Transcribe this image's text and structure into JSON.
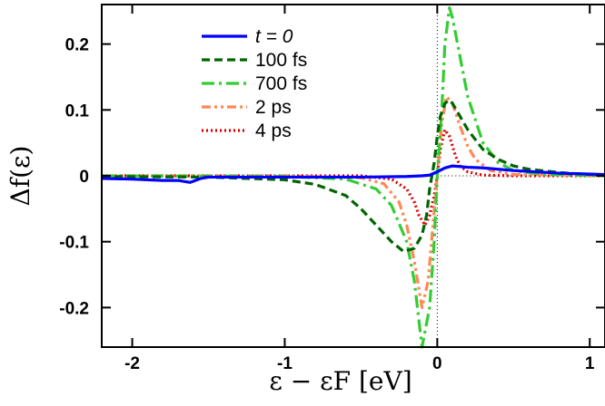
{
  "chart_data": {
    "type": "line",
    "xlabel": "ε − εF [eV]",
    "ylabel": "Δf(ε)",
    "xlim": [
      -2.2,
      1.1
    ],
    "ylim": [
      -0.26,
      0.26
    ],
    "xticks": [
      -2,
      -1,
      0,
      1
    ],
    "xtick_labels": [
      "-2",
      "-1",
      "0",
      "1"
    ],
    "yticks": [
      -0.2,
      -0.1,
      0,
      0.1,
      0.2
    ],
    "ytick_labels": [
      "-0.2",
      "-0.1",
      "0",
      "0.1",
      "0.2"
    ],
    "grid": false,
    "legend_position": "top-center",
    "reference_lines": {
      "zero_line": "dotted",
      "fermi_level": "dotted"
    },
    "series": [
      {
        "name": "t = 0",
        "color": "#0000ff",
        "dash": "solid",
        "x": [
          -2.2,
          -2.0,
          -1.8,
          -1.7,
          -1.62,
          -1.55,
          -1.5,
          -1.3,
          -1.0,
          -0.5,
          -0.2,
          -0.1,
          -0.05,
          0.0,
          0.05,
          0.1,
          0.2,
          0.3,
          0.5,
          0.8,
          1.1
        ],
        "values": [
          -0.004,
          -0.005,
          -0.007,
          -0.007,
          -0.01,
          -0.004,
          -0.002,
          -0.002,
          -0.002,
          -0.002,
          -0.001,
          0.0,
          0.001,
          0.006,
          0.012,
          0.015,
          0.013,
          0.012,
          0.008,
          0.004,
          0.002
        ]
      },
      {
        "name": "100 fs",
        "color": "#006400",
        "dash": "dashed",
        "x": [
          -2.2,
          -1.5,
          -1.0,
          -0.8,
          -0.6,
          -0.5,
          -0.4,
          -0.3,
          -0.22,
          -0.15,
          -0.1,
          -0.07,
          -0.05,
          -0.02,
          0.0,
          0.02,
          0.05,
          0.08,
          0.1,
          0.15,
          0.2,
          0.3,
          0.4,
          0.5,
          0.6,
          0.8,
          1.0,
          1.1
        ],
        "values": [
          -0.001,
          -0.002,
          -0.006,
          -0.013,
          -0.03,
          -0.05,
          -0.075,
          -0.1,
          -0.115,
          -0.11,
          -0.09,
          -0.06,
          -0.02,
          0.02,
          0.06,
          0.09,
          0.11,
          0.115,
          0.11,
          0.09,
          0.07,
          0.04,
          0.025,
          0.015,
          0.01,
          0.005,
          0.002,
          0.001
        ]
      },
      {
        "name": "700 fs",
        "color": "#33cc33",
        "dash": "dash-dot",
        "x": [
          -2.2,
          -1.0,
          -0.6,
          -0.4,
          -0.3,
          -0.2,
          -0.15,
          -0.1,
          -0.05,
          -0.02,
          0.0,
          0.03,
          0.05,
          0.08,
          0.1,
          0.15,
          0.2,
          0.3,
          0.4,
          0.5,
          0.7,
          1.1
        ],
        "values": [
          0.0,
          -0.001,
          -0.005,
          -0.02,
          -0.045,
          -0.1,
          -0.16,
          -0.26,
          -0.2,
          -0.1,
          0.0,
          0.1,
          0.2,
          0.255,
          0.24,
          0.18,
          0.12,
          0.05,
          0.02,
          0.008,
          0.002,
          0.0
        ]
      },
      {
        "name": "2 ps",
        "color": "#ff8855",
        "dash": "dash-dot-dot",
        "x": [
          -2.2,
          -1.0,
          -0.5,
          -0.35,
          -0.25,
          -0.2,
          -0.15,
          -0.1,
          -0.06,
          -0.03,
          0.0,
          0.03,
          0.06,
          0.1,
          0.15,
          0.2,
          0.25,
          0.35,
          0.5,
          1.1
        ],
        "values": [
          0.0,
          0.0,
          -0.003,
          -0.012,
          -0.04,
          -0.075,
          -0.13,
          -0.2,
          -0.16,
          -0.08,
          0.0,
          0.08,
          0.12,
          0.11,
          0.075,
          0.045,
          0.025,
          0.008,
          0.002,
          0.0
        ]
      },
      {
        "name": "4 ps",
        "color": "#dd0000",
        "dash": "dotted",
        "x": [
          -2.2,
          -0.5,
          -0.3,
          -0.2,
          -0.15,
          -0.12,
          -0.08,
          -0.05,
          -0.02,
          0.0,
          0.02,
          0.05,
          0.08,
          0.12,
          0.15,
          0.2,
          0.3,
          0.5,
          1.1
        ],
        "values": [
          0.0,
          0.0,
          -0.005,
          -0.02,
          -0.04,
          -0.06,
          -0.075,
          -0.06,
          -0.03,
          0.0,
          0.04,
          0.07,
          0.06,
          0.03,
          0.015,
          0.006,
          0.001,
          0.0,
          0.0
        ]
      }
    ]
  }
}
